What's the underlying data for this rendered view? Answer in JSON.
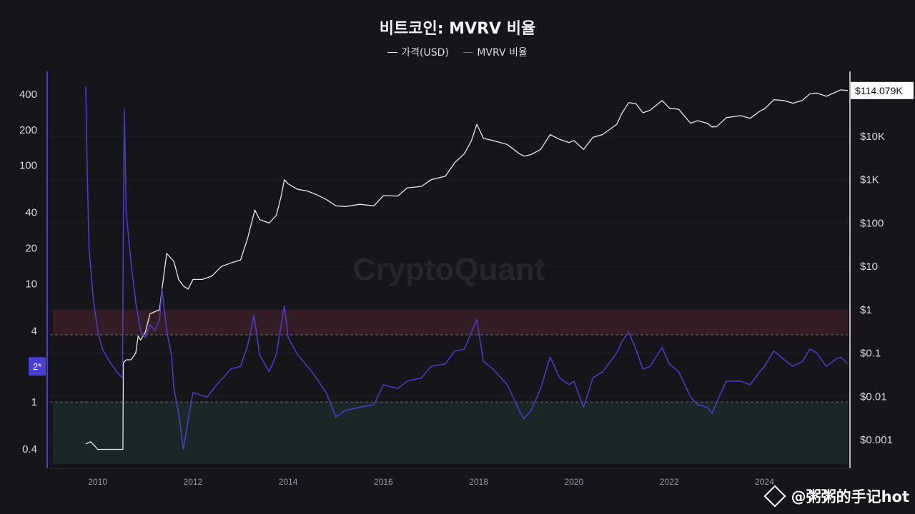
{
  "title": "비트코인: MVRV 비율",
  "legend": [
    {
      "name": "가격(USD)",
      "color": "#e8e8ec"
    },
    {
      "name": "MVRV 비율",
      "color": "#4b3bc4"
    }
  ],
  "watermark": "CryptoQuant",
  "footer": "@粥粥的手记hot",
  "colors": {
    "background": "#15151a",
    "price": "#e8e8ec",
    "mvrv": "#4b3bc4",
    "overvalued_zone": "#3a1f27",
    "undervalued_zone": "#1a2a2a",
    "axis_badge": "#4a3fd4"
  },
  "chart_data": {
    "type": "line",
    "x_ticks": [
      "2010",
      "2012",
      "2014",
      "2016",
      "2018",
      "2020",
      "2022",
      "2024"
    ],
    "x_range": [
      2009.0,
      2025.75
    ],
    "left_axis": {
      "scale": "log",
      "ticks": [
        {
          "value": 0.4,
          "label": "0.4"
        },
        {
          "value": 1,
          "label": "1"
        },
        {
          "value": 4,
          "label": "4"
        },
        {
          "value": 10,
          "label": "10"
        },
        {
          "value": 20,
          "label": "20"
        },
        {
          "value": 40,
          "label": "40"
        },
        {
          "value": 100,
          "label": "100"
        },
        {
          "value": 200,
          "label": "200"
        },
        {
          "value": 400,
          "label": "400"
        }
      ],
      "badge": "2*",
      "badge_value": 2
    },
    "right_axis": {
      "scale": "log",
      "ticks": [
        {
          "value": 0.001,
          "label": "$0.001"
        },
        {
          "value": 0.01,
          "label": "$0.01"
        },
        {
          "value": 0.1,
          "label": "$0.1"
        },
        {
          "value": 1,
          "label": "$1"
        },
        {
          "value": 10,
          "label": "$10"
        },
        {
          "value": 100,
          "label": "$100"
        },
        {
          "value": 1000,
          "label": "$1K"
        },
        {
          "value": 10000,
          "label": "$10K"
        }
      ],
      "current_label": "$114.079K",
      "current_value": 114079
    },
    "zones": [
      {
        "name": "overvalued",
        "from": 3.7,
        "to": 6.0
      },
      {
        "name": "undervalued",
        "from": 0.3,
        "to": 1.0
      }
    ],
    "reference_lines": [
      3.7,
      1.0
    ],
    "series": [
      {
        "name": "가격(USD)",
        "axis": "right",
        "points": [
          [
            2009.75,
            0.0008
          ],
          [
            2009.85,
            0.0009
          ],
          [
            2009.95,
            0.0007
          ],
          [
            2010.0,
            0.0006
          ],
          [
            2010.2,
            0.0006
          ],
          [
            2010.4,
            0.0006
          ],
          [
            2010.53,
            0.0006
          ],
          [
            2010.54,
            0.06
          ],
          [
            2010.6,
            0.07
          ],
          [
            2010.7,
            0.07
          ],
          [
            2010.8,
            0.1
          ],
          [
            2010.85,
            0.25
          ],
          [
            2010.9,
            0.2
          ],
          [
            2011.0,
            0.3
          ],
          [
            2011.1,
            0.8
          ],
          [
            2011.2,
            0.9
          ],
          [
            2011.3,
            1.0
          ],
          [
            2011.35,
            3.0
          ],
          [
            2011.45,
            20
          ],
          [
            2011.55,
            15
          ],
          [
            2011.6,
            13
          ],
          [
            2011.7,
            5
          ],
          [
            2011.8,
            3.5
          ],
          [
            2011.9,
            3.0
          ],
          [
            2012.0,
            5
          ],
          [
            2012.2,
            5
          ],
          [
            2012.4,
            6
          ],
          [
            2012.6,
            10
          ],
          [
            2012.8,
            12
          ],
          [
            2013.0,
            14
          ],
          [
            2013.15,
            45
          ],
          [
            2013.3,
            200
          ],
          [
            2013.4,
            120
          ],
          [
            2013.6,
            100
          ],
          [
            2013.75,
            150
          ],
          [
            2013.85,
            400
          ],
          [
            2013.92,
            1000
          ],
          [
            2014.0,
            800
          ],
          [
            2014.2,
            600
          ],
          [
            2014.4,
            550
          ],
          [
            2014.6,
            450
          ],
          [
            2014.8,
            350
          ],
          [
            2015.0,
            250
          ],
          [
            2015.2,
            240
          ],
          [
            2015.5,
            270
          ],
          [
            2015.8,
            250
          ],
          [
            2016.0,
            430
          ],
          [
            2016.3,
            420
          ],
          [
            2016.5,
            650
          ],
          [
            2016.8,
            700
          ],
          [
            2017.0,
            1000
          ],
          [
            2017.3,
            1200
          ],
          [
            2017.5,
            2500
          ],
          [
            2017.7,
            4000
          ],
          [
            2017.85,
            8000
          ],
          [
            2017.96,
            19000
          ],
          [
            2018.1,
            9000
          ],
          [
            2018.3,
            8000
          ],
          [
            2018.6,
            6500
          ],
          [
            2018.85,
            4000
          ],
          [
            2018.95,
            3500
          ],
          [
            2019.1,
            3800
          ],
          [
            2019.3,
            5000
          ],
          [
            2019.5,
            11000
          ],
          [
            2019.7,
            8500
          ],
          [
            2019.9,
            7200
          ],
          [
            2020.0,
            8000
          ],
          [
            2020.2,
            5000
          ],
          [
            2020.4,
            9500
          ],
          [
            2020.6,
            11000
          ],
          [
            2020.9,
            19000
          ],
          [
            2021.0,
            33000
          ],
          [
            2021.15,
            60000
          ],
          [
            2021.3,
            57000
          ],
          [
            2021.45,
            35000
          ],
          [
            2021.6,
            40000
          ],
          [
            2021.85,
            67000
          ],
          [
            2022.0,
            45000
          ],
          [
            2022.2,
            42000
          ],
          [
            2022.45,
            20000
          ],
          [
            2022.6,
            23000
          ],
          [
            2022.8,
            20000
          ],
          [
            2022.9,
            16500
          ],
          [
            2023.0,
            16800
          ],
          [
            2023.2,
            27000
          ],
          [
            2023.5,
            30000
          ],
          [
            2023.7,
            26000
          ],
          [
            2023.9,
            38000
          ],
          [
            2024.0,
            43000
          ],
          [
            2024.2,
            70000
          ],
          [
            2024.4,
            67000
          ],
          [
            2024.6,
            58000
          ],
          [
            2024.8,
            68000
          ],
          [
            2024.95,
            95000
          ],
          [
            2025.1,
            100000
          ],
          [
            2025.3,
            84000
          ],
          [
            2025.5,
            105000
          ],
          [
            2025.6,
            118000
          ],
          [
            2025.75,
            114079
          ]
        ]
      },
      {
        "name": "MVRV 비율",
        "axis": "left",
        "points": [
          [
            2009.75,
            460
          ],
          [
            2009.78,
            90
          ],
          [
            2009.82,
            20
          ],
          [
            2009.9,
            8
          ],
          [
            2010.0,
            4
          ],
          [
            2010.1,
            2.8
          ],
          [
            2010.25,
            2.2
          ],
          [
            2010.4,
            1.8
          ],
          [
            2010.52,
            1.6
          ],
          [
            2010.54,
            30
          ],
          [
            2010.56,
            300
          ],
          [
            2010.6,
            40
          ],
          [
            2010.7,
            15
          ],
          [
            2010.8,
            7
          ],
          [
            2010.9,
            4
          ],
          [
            2011.0,
            3.5
          ],
          [
            2011.1,
            4.5
          ],
          [
            2011.2,
            4
          ],
          [
            2011.3,
            5
          ],
          [
            2011.35,
            9
          ],
          [
            2011.45,
            4
          ],
          [
            2011.55,
            2.5
          ],
          [
            2011.6,
            1.3
          ],
          [
            2011.7,
            0.8
          ],
          [
            2011.8,
            0.4
          ],
          [
            2011.9,
            0.7
          ],
          [
            2012.0,
            1.2
          ],
          [
            2012.3,
            1.1
          ],
          [
            2012.5,
            1.4
          ],
          [
            2012.8,
            1.9
          ],
          [
            2013.0,
            2.0
          ],
          [
            2013.15,
            3.0
          ],
          [
            2013.28,
            5.4
          ],
          [
            2013.4,
            2.5
          ],
          [
            2013.6,
            1.8
          ],
          [
            2013.75,
            2.5
          ],
          [
            2013.92,
            6.5
          ],
          [
            2014.0,
            3.5
          ],
          [
            2014.2,
            2.5
          ],
          [
            2014.5,
            1.8
          ],
          [
            2014.8,
            1.2
          ],
          [
            2015.0,
            0.75
          ],
          [
            2015.2,
            0.85
          ],
          [
            2015.5,
            0.9
          ],
          [
            2015.8,
            0.95
          ],
          [
            2016.0,
            1.4
          ],
          [
            2016.3,
            1.3
          ],
          [
            2016.5,
            1.5
          ],
          [
            2016.8,
            1.6
          ],
          [
            2017.0,
            2.0
          ],
          [
            2017.3,
            2.1
          ],
          [
            2017.5,
            2.7
          ],
          [
            2017.7,
            2.8
          ],
          [
            2017.96,
            5.0
          ],
          [
            2018.1,
            2.2
          ],
          [
            2018.3,
            1.9
          ],
          [
            2018.6,
            1.4
          ],
          [
            2018.85,
            0.85
          ],
          [
            2018.95,
            0.72
          ],
          [
            2019.1,
            0.85
          ],
          [
            2019.3,
            1.3
          ],
          [
            2019.5,
            2.4
          ],
          [
            2019.7,
            1.6
          ],
          [
            2019.9,
            1.4
          ],
          [
            2020.0,
            1.5
          ],
          [
            2020.2,
            0.9
          ],
          [
            2020.4,
            1.6
          ],
          [
            2020.6,
            1.8
          ],
          [
            2020.9,
            2.6
          ],
          [
            2021.0,
            3.2
          ],
          [
            2021.15,
            3.9
          ],
          [
            2021.3,
            2.8
          ],
          [
            2021.45,
            1.9
          ],
          [
            2021.6,
            2.0
          ],
          [
            2021.85,
            2.9
          ],
          [
            2022.0,
            2.1
          ],
          [
            2022.2,
            1.8
          ],
          [
            2022.45,
            1.1
          ],
          [
            2022.6,
            0.95
          ],
          [
            2022.8,
            0.9
          ],
          [
            2022.9,
            0.8
          ],
          [
            2023.0,
            1.0
          ],
          [
            2023.2,
            1.5
          ],
          [
            2023.5,
            1.5
          ],
          [
            2023.7,
            1.4
          ],
          [
            2023.9,
            1.8
          ],
          [
            2024.0,
            2.0
          ],
          [
            2024.2,
            2.7
          ],
          [
            2024.4,
            2.3
          ],
          [
            2024.6,
            2.0
          ],
          [
            2024.8,
            2.2
          ],
          [
            2024.95,
            2.8
          ],
          [
            2025.1,
            2.6
          ],
          [
            2025.3,
            2.0
          ],
          [
            2025.5,
            2.3
          ],
          [
            2025.6,
            2.4
          ],
          [
            2025.75,
            2.1
          ]
        ]
      }
    ]
  }
}
